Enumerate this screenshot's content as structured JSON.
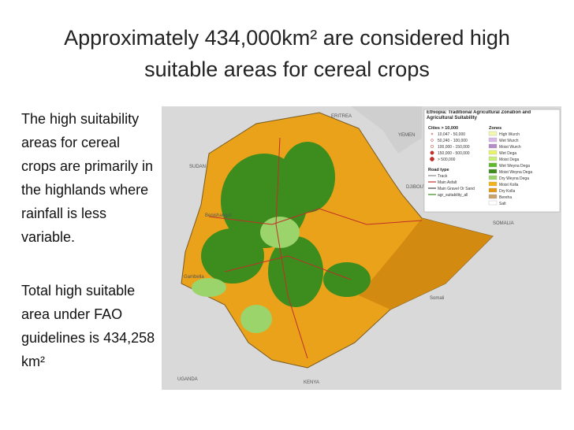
{
  "slide": {
    "title": "Approximately 434,000km² are considered high suitable areas for cereal crops",
    "paragraphs": [
      "The high suitability areas for cereal crops are primarily in the highlands where rainfall is less variable.",
      "Total high suitable area under FAO guidelines is 434,258 km²"
    ]
  },
  "map": {
    "title": "Ethiopia: Traditional Agricultural Zonation and Agricultural Suitability",
    "country_labels": [
      "ERITREA",
      "SUDAN",
      "YEMEN",
      "DJIBOUTI",
      "SOMALIA",
      "KENYA",
      "UGANDA",
      "Gambella",
      "Somali",
      "Benishangul"
    ],
    "legend": {
      "cities_title": "Cities > 10,000",
      "cities": [
        "10,047 - 50,000",
        "50,240 - 100,000",
        "100,000 - 150,000",
        "150,000 - 500,000",
        "> 500,000"
      ],
      "roads_title": "Road type",
      "roads": [
        "Track",
        "Main Asfalt",
        "Main Gravel Or Sand",
        "agr_suitability_all"
      ],
      "zones_title": "Zones",
      "zones": [
        {
          "label": "High Wurch",
          "color": "#f4f7b0"
        },
        {
          "label": "Wet Wurch",
          "color": "#d7b8e6"
        },
        {
          "label": "Moist Wurch",
          "color": "#b48cc8"
        },
        {
          "label": "Wet Dega",
          "color": "#e8f56a"
        },
        {
          "label": "Moist Dega",
          "color": "#c9ee7a"
        },
        {
          "label": "Wet Weyna Dega",
          "color": "#5fb82e"
        },
        {
          "label": "Moist Weyna Dega",
          "color": "#3c8c1e"
        },
        {
          "label": "Dry Weyna Dega",
          "color": "#9bd46a"
        },
        {
          "label": "Moist Kolla",
          "color": "#f2b21b"
        },
        {
          "label": "Dry Kolla",
          "color": "#e39a16"
        },
        {
          "label": "Bereha",
          "color": "#c9a36a"
        },
        {
          "label": "Salt",
          "color": "#ffffff"
        }
      ]
    }
  }
}
